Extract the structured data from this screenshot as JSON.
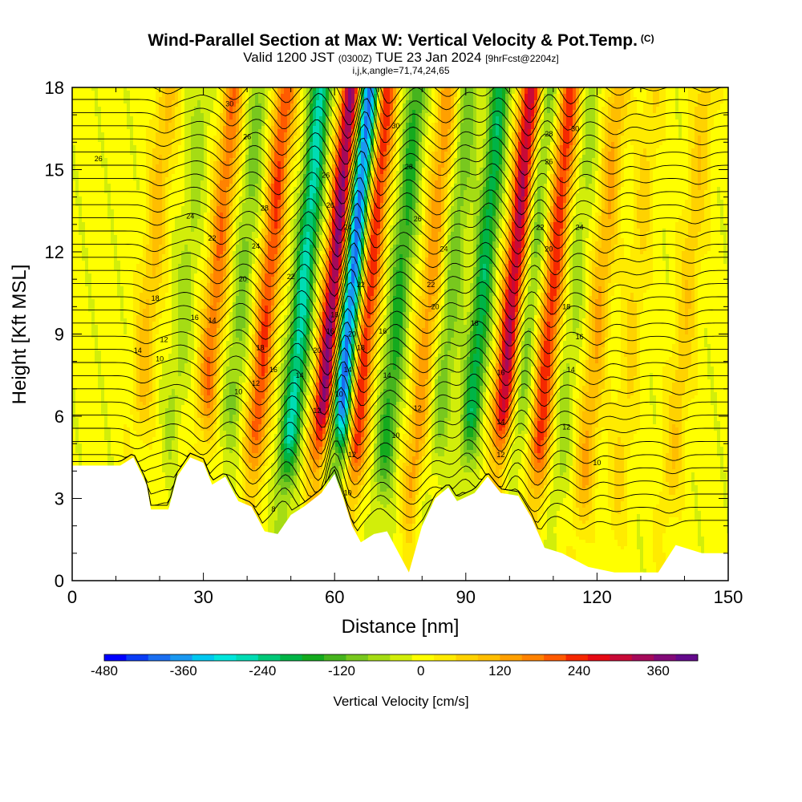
{
  "title": {
    "line1": "Wind-Parallel Section at Max W: Vertical Velocity & Pot.Temp.",
    "line1_tag": "(C)",
    "line2_a": "Valid 1200 JST",
    "line2_b": "(0300Z)",
    "line2_c": "TUE 23 Jan 2024",
    "line2_d": "[9hrFcst@2204z]",
    "line3": "i,j,k,angle=71,74,24,65"
  },
  "chart_data": {
    "type": "heatmap",
    "xlabel": "Distance [nm]",
    "ylabel": "Height [Kft MSL]",
    "xlim": [
      0,
      150
    ],
    "ylim": [
      0,
      18
    ],
    "x_ticks": [
      "0",
      "30",
      "60",
      "90",
      "120",
      "150"
    ],
    "y_ticks": [
      "0",
      "3",
      "6",
      "9",
      "12",
      "15",
      "18"
    ],
    "field": "Vertical Velocity",
    "contour_field": "Potential Temperature (C)",
    "velocity_bands": [
      {
        "center_x": 17,
        "peak": 100
      },
      {
        "center_x": 25,
        "peak": -60
      },
      {
        "center_x": 32,
        "peak": 180
      },
      {
        "center_x": 38,
        "peak": -90
      },
      {
        "center_x": 44,
        "peak": 220
      },
      {
        "center_x": 52,
        "peak": -260
      },
      {
        "center_x": 59,
        "peak": 380
      },
      {
        "center_x": 63,
        "peak": -430
      },
      {
        "center_x": 67,
        "peak": 260
      },
      {
        "center_x": 74,
        "peak": -160
      },
      {
        "center_x": 81,
        "peak": 140
      },
      {
        "center_x": 86,
        "peak": -100
      },
      {
        "center_x": 93,
        "peak": -200
      },
      {
        "center_x": 100,
        "peak": 320
      },
      {
        "center_x": 104,
        "peak": -100
      },
      {
        "center_x": 109,
        "peak": 240
      },
      {
        "center_x": 114,
        "peak": -60
      },
      {
        "center_x": 120,
        "peak": 120
      },
      {
        "center_x": 128,
        "peak": 60
      },
      {
        "center_x": 140,
        "peak": 80
      }
    ],
    "terrain": [
      {
        "x": 0,
        "h": 4.2
      },
      {
        "x": 11,
        "h": 4.2
      },
      {
        "x": 14,
        "h": 4.5
      },
      {
        "x": 17,
        "h": 3.5
      },
      {
        "x": 18,
        "h": 2.6
      },
      {
        "x": 22,
        "h": 2.6
      },
      {
        "x": 24,
        "h": 3.8
      },
      {
        "x": 27,
        "h": 4.5
      },
      {
        "x": 30,
        "h": 4.3
      },
      {
        "x": 32,
        "h": 3.5
      },
      {
        "x": 35,
        "h": 3.8
      },
      {
        "x": 38,
        "h": 2.9
      },
      {
        "x": 41,
        "h": 2.7
      },
      {
        "x": 44,
        "h": 1.8
      },
      {
        "x": 47,
        "h": 1.7
      },
      {
        "x": 50,
        "h": 2.4
      },
      {
        "x": 53,
        "h": 2.7
      },
      {
        "x": 57,
        "h": 3.2
      },
      {
        "x": 60,
        "h": 3.9
      },
      {
        "x": 62,
        "h": 3.0
      },
      {
        "x": 64,
        "h": 2.0
      },
      {
        "x": 66,
        "h": 1.4
      },
      {
        "x": 69,
        "h": 1.7
      },
      {
        "x": 72,
        "h": 1.8
      },
      {
        "x": 75,
        "h": 0.9
      },
      {
        "x": 77,
        "h": 0.3
      },
      {
        "x": 80,
        "h": 2.0
      },
      {
        "x": 83,
        "h": 3.0
      },
      {
        "x": 86,
        "h": 3.4
      },
      {
        "x": 88,
        "h": 2.9
      },
      {
        "x": 92,
        "h": 3.2
      },
      {
        "x": 95,
        "h": 3.8
      },
      {
        "x": 98,
        "h": 3.2
      },
      {
        "x": 102,
        "h": 3.1
      },
      {
        "x": 105,
        "h": 2.3
      },
      {
        "x": 108,
        "h": 1.2
      },
      {
        "x": 112,
        "h": 1.0
      },
      {
        "x": 118,
        "h": 0.5
      },
      {
        "x": 124,
        "h": 0.3
      },
      {
        "x": 134,
        "h": 0.3
      },
      {
        "x": 138,
        "h": 1.3
      },
      {
        "x": 144,
        "h": 1.0
      },
      {
        "x": 150,
        "h": 1.0
      }
    ],
    "contour_labels": [
      {
        "text": "30",
        "x": 36,
        "y": 17.4
      },
      {
        "text": "26",
        "x": 40,
        "y": 16.2
      },
      {
        "text": "26",
        "x": 6,
        "y": 15.4
      },
      {
        "text": "24",
        "x": 27,
        "y": 13.3
      },
      {
        "text": "22",
        "x": 32,
        "y": 12.5
      },
      {
        "text": "28",
        "x": 44,
        "y": 13.6
      },
      {
        "text": "24",
        "x": 42,
        "y": 12.2
      },
      {
        "text": "20",
        "x": 39,
        "y": 11.0
      },
      {
        "text": "22",
        "x": 50,
        "y": 11.1
      },
      {
        "text": "18",
        "x": 19,
        "y": 10.3
      },
      {
        "text": "16",
        "x": 28,
        "y": 9.6
      },
      {
        "text": "14",
        "x": 32,
        "y": 9.5
      },
      {
        "text": "12",
        "x": 21,
        "y": 8.8
      },
      {
        "text": "14",
        "x": 15,
        "y": 8.4
      },
      {
        "text": "10",
        "x": 20,
        "y": 8.1
      },
      {
        "text": "18",
        "x": 43,
        "y": 8.5
      },
      {
        "text": "16",
        "x": 46,
        "y": 7.7
      },
      {
        "text": "12",
        "x": 42,
        "y": 7.2
      },
      {
        "text": "10",
        "x": 38,
        "y": 6.9
      },
      {
        "text": "14",
        "x": 52,
        "y": 7.5
      },
      {
        "text": "20",
        "x": 56,
        "y": 8.4
      },
      {
        "text": "12",
        "x": 56,
        "y": 6.2
      },
      {
        "text": "10",
        "x": 61,
        "y": 6.8
      },
      {
        "text": "26",
        "x": 58,
        "y": 14.8
      },
      {
        "text": "26",
        "x": 59,
        "y": 13.7
      },
      {
        "text": "24",
        "x": 63,
        "y": 12.9
      },
      {
        "text": "22",
        "x": 66,
        "y": 10.8
      },
      {
        "text": "18",
        "x": 60,
        "y": 9.7
      },
      {
        "text": "16",
        "x": 59,
        "y": 9.1
      },
      {
        "text": "20",
        "x": 64,
        "y": 9.0
      },
      {
        "text": "18",
        "x": 66,
        "y": 8.5
      },
      {
        "text": "14",
        "x": 63,
        "y": 7.7
      },
      {
        "text": "12",
        "x": 64,
        "y": 4.6
      },
      {
        "text": "10",
        "x": 63,
        "y": 3.2
      },
      {
        "text": "8",
        "x": 46,
        "y": 2.6
      },
      {
        "text": "16",
        "x": 71,
        "y": 9.1
      },
      {
        "text": "14",
        "x": 72,
        "y": 7.5
      },
      {
        "text": "30",
        "x": 74,
        "y": 16.6
      },
      {
        "text": "28",
        "x": 77,
        "y": 15.1
      },
      {
        "text": "26",
        "x": 79,
        "y": 13.2
      },
      {
        "text": "24",
        "x": 85,
        "y": 12.1
      },
      {
        "text": "22",
        "x": 82,
        "y": 10.8
      },
      {
        "text": "20",
        "x": 83,
        "y": 10.0
      },
      {
        "text": "18",
        "x": 92,
        "y": 9.4
      },
      {
        "text": "12",
        "x": 79,
        "y": 6.3
      },
      {
        "text": "10",
        "x": 74,
        "y": 5.3
      },
      {
        "text": "16",
        "x": 98,
        "y": 7.6
      },
      {
        "text": "14",
        "x": 98,
        "y": 5.8
      },
      {
        "text": "12",
        "x": 98,
        "y": 4.6
      },
      {
        "text": "28",
        "x": 109,
        "y": 16.3
      },
      {
        "text": "30",
        "x": 115,
        "y": 16.5
      },
      {
        "text": "26",
        "x": 109,
        "y": 15.3
      },
      {
        "text": "22",
        "x": 107,
        "y": 12.9
      },
      {
        "text": "24",
        "x": 116,
        "y": 12.9
      },
      {
        "text": "20",
        "x": 109,
        "y": 12.1
      },
      {
        "text": "18",
        "x": 113,
        "y": 10.0
      },
      {
        "text": "16",
        "x": 116,
        "y": 8.9
      },
      {
        "text": "14",
        "x": 114,
        "y": 7.7
      },
      {
        "text": "12",
        "x": 113,
        "y": 5.6
      },
      {
        "text": "10",
        "x": 120,
        "y": 4.3
      }
    ]
  },
  "colorbar": {
    "label": "Vertical Velocity [cm/s]",
    "tick_labels": [
      "-480",
      "-360",
      "-240",
      "-120",
      "0",
      "120",
      "240",
      "360"
    ],
    "range": [
      -480,
      420
    ],
    "colors": [
      "#0000ff",
      "#0a3cf5",
      "#1a6ef0",
      "#1a98f0",
      "#00c8f0",
      "#00e6dc",
      "#00dcb4",
      "#00c878",
      "#00b446",
      "#14aa1e",
      "#46b41e",
      "#78c81e",
      "#a5dc14",
      "#d2ee0a",
      "#ffff00",
      "#ffeb00",
      "#ffd200",
      "#ffbe00",
      "#ffa000",
      "#ff8200",
      "#ff5a00",
      "#f52800",
      "#e60a14",
      "#c80a37",
      "#a50a5a",
      "#820a78",
      "#640a8c"
    ]
  }
}
